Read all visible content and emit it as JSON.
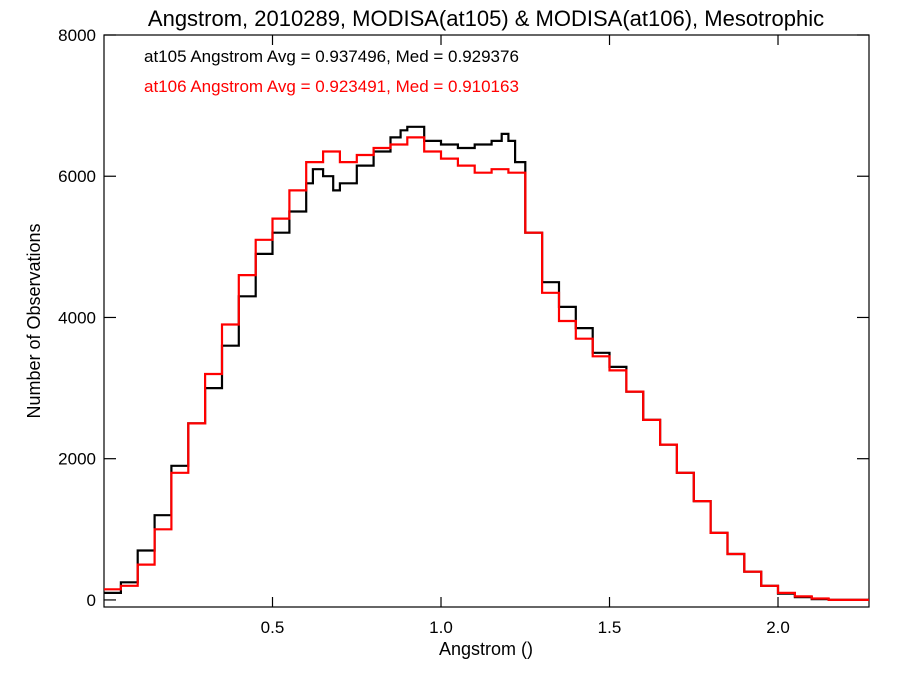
{
  "chart_data": {
    "type": "line",
    "style": "step",
    "title": "Angstrom, 2010289, MODISA(at105) & MODISA(at106), Mesotrophic",
    "xlabel": "Angstrom ()",
    "ylabel": "Number of Observations",
    "xlim": [
      0.0,
      2.27
    ],
    "ylim": [
      -100,
      8000
    ],
    "xticks": [
      0.5,
      1.0,
      1.5,
      2.0
    ],
    "xtick_labels": [
      "0.5",
      "1.0",
      "1.5",
      "2.0"
    ],
    "yticks": [
      0,
      2000,
      4000,
      6000,
      8000
    ],
    "ytick_labels": [
      "0",
      "2000",
      "4000",
      "6000",
      "8000"
    ],
    "grid": false,
    "legend_position": "top-left",
    "series": [
      {
        "name": "at105",
        "color": "#000000",
        "stats_text": "at105 Angstrom Avg = 0.937496, Med = 0.929376",
        "x": [
          0.0,
          0.05,
          0.1,
          0.15,
          0.2,
          0.25,
          0.3,
          0.35,
          0.4,
          0.45,
          0.5,
          0.55,
          0.6,
          0.62,
          0.65,
          0.68,
          0.7,
          0.75,
          0.8,
          0.85,
          0.88,
          0.9,
          0.95,
          1.0,
          1.05,
          1.1,
          1.15,
          1.18,
          1.2,
          1.22,
          1.25,
          1.3,
          1.35,
          1.4,
          1.45,
          1.5,
          1.52,
          1.55,
          1.6,
          1.65,
          1.7,
          1.75,
          1.8,
          1.85,
          1.9,
          1.95,
          2.0,
          2.05,
          2.1,
          2.15,
          2.2,
          2.27
        ],
        "y": [
          100,
          250,
          700,
          1200,
          1900,
          2500,
          3000,
          3600,
          4300,
          4900,
          5200,
          5500,
          5900,
          6100,
          6000,
          5800,
          5900,
          6150,
          6350,
          6550,
          6650,
          6700,
          6500,
          6450,
          6400,
          6450,
          6500,
          6600,
          6500,
          6200,
          5200,
          4500,
          4150,
          3850,
          3500,
          3300,
          3300,
          2950,
          2550,
          2200,
          1800,
          1400,
          950,
          650,
          400,
          200,
          90,
          40,
          10,
          0,
          0,
          0
        ]
      },
      {
        "name": "at106",
        "color": "#ff0000",
        "stats_text": "at106 Angstrom Avg = 0.923491, Med = 0.910163",
        "x": [
          0.0,
          0.05,
          0.1,
          0.15,
          0.2,
          0.25,
          0.3,
          0.35,
          0.4,
          0.45,
          0.5,
          0.55,
          0.6,
          0.65,
          0.7,
          0.75,
          0.8,
          0.85,
          0.9,
          0.95,
          1.0,
          1.05,
          1.1,
          1.15,
          1.2,
          1.25,
          1.3,
          1.35,
          1.4,
          1.45,
          1.5,
          1.55,
          1.6,
          1.65,
          1.7,
          1.75,
          1.8,
          1.85,
          1.9,
          1.95,
          2.0,
          2.05,
          2.1,
          2.15,
          2.2,
          2.27
        ],
        "y": [
          150,
          200,
          500,
          1000,
          1800,
          2500,
          3200,
          3900,
          4600,
          5100,
          5400,
          5800,
          6200,
          6350,
          6200,
          6300,
          6400,
          6450,
          6550,
          6350,
          6250,
          6150,
          6050,
          6100,
          6050,
          5200,
          4350,
          3950,
          3700,
          3450,
          3250,
          2950,
          2550,
          2200,
          1800,
          1400,
          950,
          650,
          400,
          200,
          100,
          50,
          20,
          0,
          0,
          0
        ]
      }
    ]
  }
}
